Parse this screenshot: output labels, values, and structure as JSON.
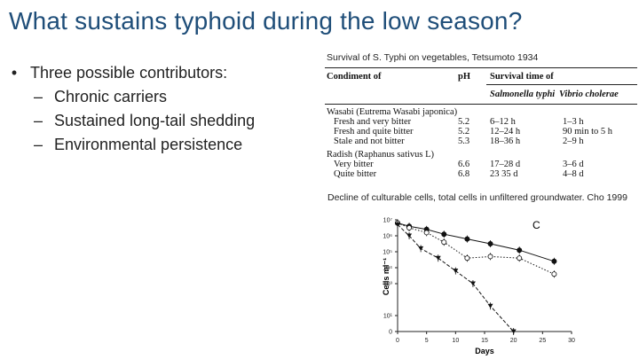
{
  "slide": {
    "title": "What sustains typhoid during the low season?",
    "bullet_main": "Three possible contributors:",
    "sub_bullets": [
      "Chronic carriers",
      "Sustained long-tail shedding",
      "Environmental persistence"
    ]
  },
  "figure1": {
    "caption": "Survival of S. Typhi on vegetables, Tetsumoto 1934",
    "headers": {
      "col1": "Condiment of",
      "col2": "pH",
      "col3": "Survival time of",
      "sub_col3a": "Salmonella typhi",
      "sub_col3b": "Vibrio cholerae"
    },
    "groups": [
      {
        "name": "Wasabi (Eutrema Wasabi japonica)",
        "rows": [
          {
            "label": "Fresh and very bitter",
            "ph": "5.2",
            "typhi": "6–12 h",
            "cholerae": "1–3 h"
          },
          {
            "label": "Fresh and quite bitter",
            "ph": "5.2",
            "typhi": "12–24 h",
            "cholerae": "90 min to 5 h"
          },
          {
            "label": "Stale and not bitter",
            "ph": "5.3",
            "typhi": "18–36 h",
            "cholerae": "2–9 h"
          }
        ]
      },
      {
        "name": "Radish (Raphanus sativus L)",
        "rows": [
          {
            "label": "Very bitter",
            "ph": "6.6",
            "typhi": "17–28 d",
            "cholerae": "3–6 d"
          },
          {
            "label": "Quite bitter",
            "ph": "6.8",
            "typhi": "23 35 d",
            "cholerae": "4–8 d"
          }
        ]
      }
    ]
  },
  "figure2": {
    "caption": "Decline of culturable cells, total cells in unfiltered groundwater. Cho 1999"
  },
  "chart_data": {
    "type": "line",
    "panel_label": "C",
    "xlabel": "Days",
    "ylabel": "Cells ml⁻¹",
    "x_ticks": [
      0,
      5,
      10,
      15,
      20,
      25,
      30
    ],
    "y_ticks": [
      "0",
      "10¹",
      "10³",
      "10⁴",
      "10⁵",
      "10⁶",
      "10⁷"
    ],
    "xlim": [
      0,
      30
    ],
    "y_log10_lim": [
      0,
      7
    ],
    "series": [
      {
        "style": "solid-filled-circle",
        "x": [
          0,
          2,
          5,
          8,
          12,
          16,
          21,
          27
        ],
        "y": [
          6.8,
          6.6,
          6.4,
          6.1,
          5.8,
          5.5,
          5.1,
          4.4
        ]
      },
      {
        "style": "dotted-open-circle",
        "x": [
          0,
          2,
          5,
          8,
          12,
          16,
          21,
          27
        ],
        "y": [
          6.8,
          6.5,
          6.2,
          5.6,
          4.6,
          4.7,
          4.6,
          3.6
        ]
      },
      {
        "style": "dashed-filled-triangle",
        "x": [
          0,
          2,
          4,
          7,
          10,
          13,
          16,
          20
        ],
        "y": [
          6.7,
          6.0,
          5.2,
          4.6,
          3.8,
          3.0,
          1.6,
          0
        ]
      }
    ]
  }
}
